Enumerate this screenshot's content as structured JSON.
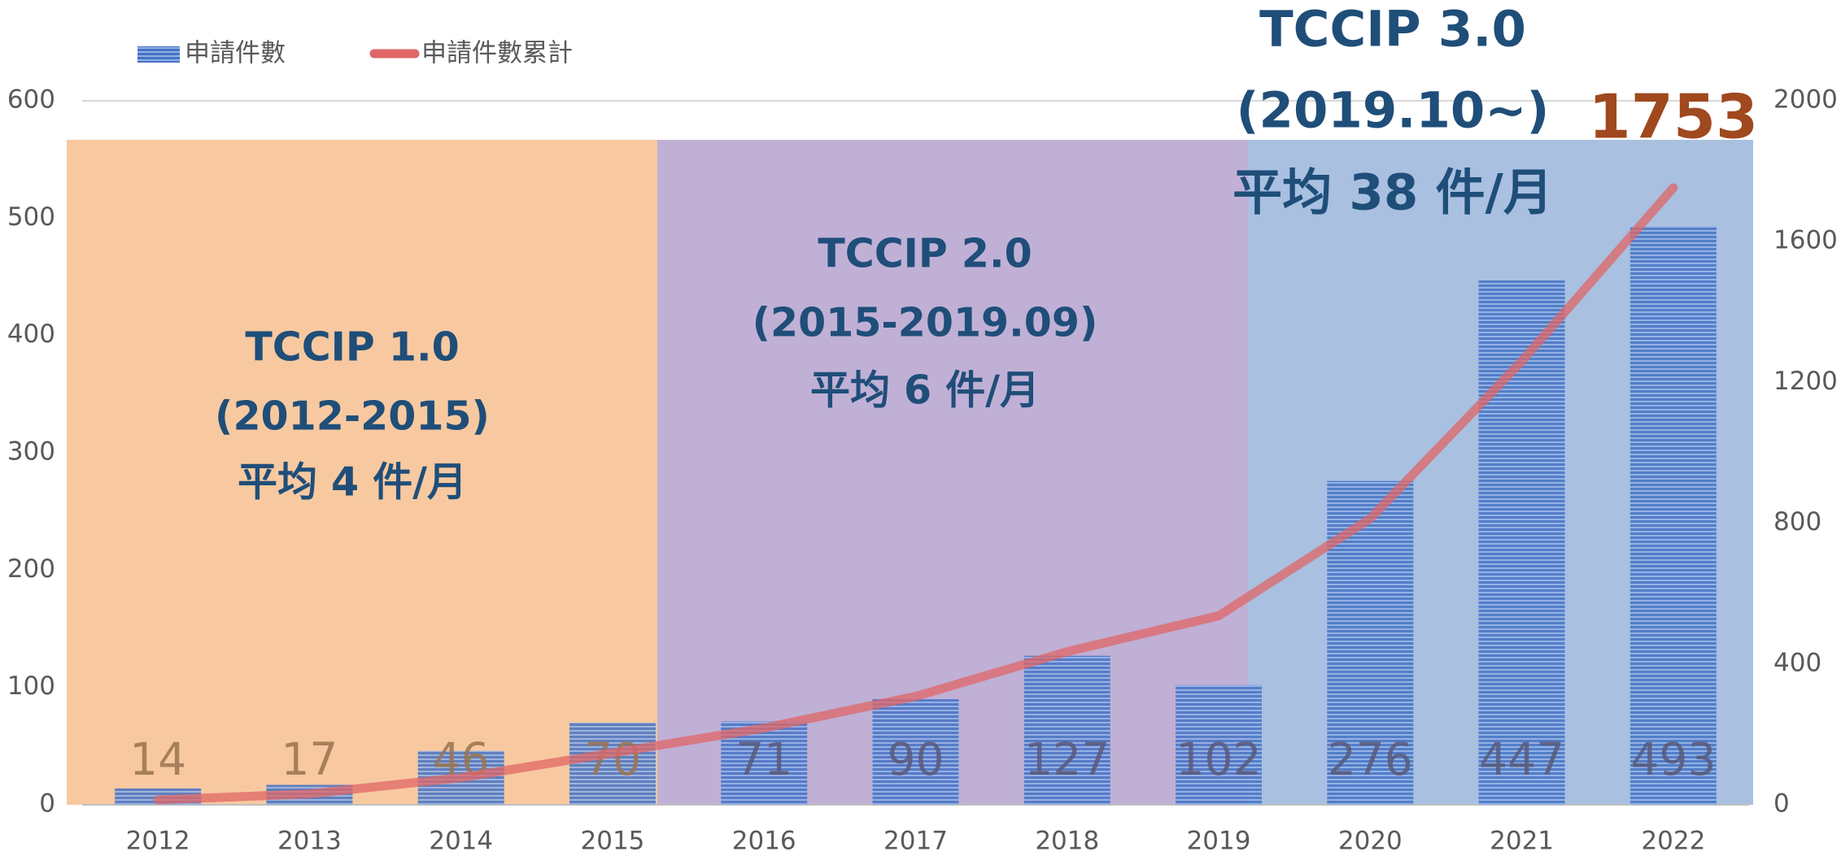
{
  "chart_data": {
    "type": "bar",
    "categories": [
      "2012",
      "2013",
      "2014",
      "2015",
      "2016",
      "2017",
      "2018",
      "2019",
      "2020",
      "2021",
      "2022"
    ],
    "series": [
      {
        "name": "申請件數",
        "type": "bar",
        "color": "#4472c4",
        "values": [
          14,
          17,
          46,
          70,
          71,
          90,
          127,
          102,
          276,
          447,
          493
        ]
      },
      {
        "name": "申請件數累計",
        "type": "line",
        "axis": "y2",
        "color": "#e06666",
        "values": [
          14,
          31,
          77,
          147,
          218,
          308,
          435,
          537,
          813,
          1260,
          1753
        ]
      }
    ],
    "ylim": [
      0,
      600
    ],
    "yticks": [
      0,
      100,
      200,
      300,
      400,
      500,
      600
    ],
    "y2lim": [
      0,
      2000
    ],
    "y2ticks": [
      0,
      400,
      800,
      1200,
      1600,
      2000
    ],
    "grid": true,
    "legend": "top-left",
    "annotations": [
      {
        "lines": [
          "TCCIP 1.0",
          "(2012-2015)",
          "平均 4 件/月"
        ]
      },
      {
        "lines": [
          "TCCIP 2.0",
          "(2015-2019.09)",
          "平均 6 件/月"
        ]
      },
      {
        "lines": [
          "TCCIP 3.0",
          "(2019.10~)",
          "平均 38 件/月"
        ]
      }
    ]
  }
}
